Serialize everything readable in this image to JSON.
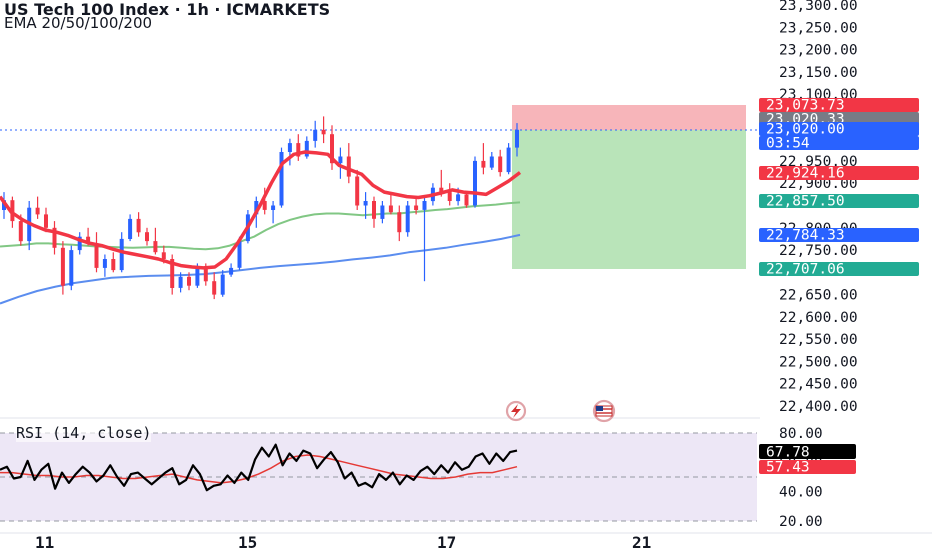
{
  "header": {
    "title": "US Tech 100 Index · 1h · ICMARKETS",
    "indicators": "EMA 20/50/100/200"
  },
  "rsi": {
    "legend": "RSI (14, close)",
    "axis_ticks": [
      "80.00",
      "60.00",
      "40.00",
      "20.00"
    ],
    "value_label": "67.78",
    "ma_label": "57.43",
    "value": 67.78,
    "ma_value": 57.43
  },
  "price_axis": {
    "ticks": [
      "23,300.00",
      "23,250.00",
      "23,200.00",
      "23,150.00",
      "23,100.00",
      "22,950.00",
      "22,900.00",
      "22,800.00",
      "22,750.00",
      "22,650.00",
      "22,600.00",
      "22,550.00",
      "22,500.00",
      "22,450.00",
      "22,400.00"
    ]
  },
  "price_tags": [
    {
      "label": "23,073.73",
      "color": "#f23645",
      "text": "#ffffff",
      "kind": "stop-loss"
    },
    {
      "label": "23,020.33",
      "color": "#787b86",
      "text": "#ffffff",
      "kind": "last-value"
    },
    {
      "label": "23,020.00",
      "color": "#2962ff",
      "text": "#ffffff",
      "kind": "current-price"
    },
    {
      "label": "03:54",
      "color": "#2962ff",
      "text": "#ffffff",
      "kind": "bar-countdown"
    },
    {
      "label": "22,924.16",
      "color": "#f23645",
      "text": "#ffffff",
      "kind": "ema-20"
    },
    {
      "label": "22,857.50",
      "color": "#22ab94",
      "text": "#ffffff",
      "kind": "ema-50"
    },
    {
      "label": "22,784.33",
      "color": "#2962ff",
      "text": "#ffffff",
      "kind": "ema-100"
    },
    {
      "label": "22,707.06",
      "color": "#22ab94",
      "text": "#ffffff",
      "kind": "take-profit"
    }
  ],
  "time_axis": {
    "labels": [
      "11",
      "15",
      "17",
      "21"
    ]
  },
  "position": {
    "type": "short",
    "entry": 23020.33,
    "stop": 23073.73,
    "target": 22707.06
  },
  "colors": {
    "up": "#2962ff",
    "down": "#f23645",
    "ema20": "#f23645",
    "ema50": "#81c784",
    "ema100": "#5b8def",
    "rsi_line": "#000000",
    "rsi_ma": "#e53935",
    "rsi_band": "#ede7f6",
    "stop_zone": "#f7b5ba",
    "target_zone": "#b9e4b9"
  },
  "icons": [
    "flash-icon",
    "calendar-flag-icon"
  ],
  "chart_data": [
    {
      "type": "candlestick",
      "title": "US Tech 100 Index · 1h · ICMARKETS",
      "y_range": [
        22375,
        23310
      ],
      "x_labels": [
        "11",
        "15",
        "17",
        "21"
      ],
      "series": [
        {
          "name": "EMA 20/50/100/200",
          "kind": "ema-20",
          "values": [
            22870,
            22835,
            22818,
            22805,
            22795,
            22790,
            22783,
            22773,
            22765,
            22760,
            22752,
            22745,
            22740,
            22735,
            22730,
            22722,
            22715,
            22712,
            22710,
            22712,
            22730,
            22765,
            22805,
            22850,
            22900,
            22945,
            22965,
            22970,
            22968,
            22965,
            22940,
            22930,
            22920,
            22895,
            22880,
            22875,
            22870,
            22868,
            22872,
            22878,
            22885,
            22880,
            22878,
            22875,
            22890,
            22905,
            22924
          ]
        },
        {
          "name": "",
          "kind": "ema-50",
          "values": [
            22758,
            22760,
            22762,
            22765,
            22765,
            22763,
            22762,
            22760,
            22758,
            22757,
            22756,
            22755,
            22756,
            22757,
            22757,
            22755,
            22753,
            22752,
            22754,
            22760,
            22770,
            22780,
            22795,
            22808,
            22818,
            22825,
            22830,
            22832,
            22832,
            22830,
            22828,
            22830,
            22832,
            22832,
            22835,
            22837,
            22840,
            22842,
            22845,
            22848,
            22850,
            22852,
            22855,
            22857
          ]
        },
        {
          "name": "",
          "kind": "ema-100",
          "values": [
            22630,
            22645,
            22658,
            22668,
            22676,
            22682,
            22688,
            22690,
            22692,
            22693,
            22694,
            22696,
            22700,
            22705,
            22710,
            22714,
            22717,
            22720,
            22724,
            22729,
            22733,
            22738,
            22745,
            22750,
            22755,
            22762,
            22768,
            22775,
            22784
          ]
        }
      ],
      "candles": [
        [
          22840,
          22880,
          22820,
          22862
        ],
        [
          22862,
          22870,
          22800,
          22815
        ],
        [
          22815,
          22830,
          22760,
          22770
        ],
        [
          22770,
          22860,
          22750,
          22845
        ],
        [
          22845,
          22870,
          22820,
          22830
        ],
        [
          22830,
          22845,
          22790,
          22800
        ],
        [
          22800,
          22815,
          22740,
          22755
        ],
        [
          22755,
          22770,
          22650,
          22670
        ],
        [
          22670,
          22760,
          22660,
          22750
        ],
        [
          22750,
          22790,
          22740,
          22780
        ],
        [
          22780,
          22800,
          22760,
          22765
        ],
        [
          22765,
          22790,
          22700,
          22710
        ],
        [
          22710,
          22740,
          22690,
          22730
        ],
        [
          22730,
          22745,
          22700,
          22705
        ],
        [
          22705,
          22790,
          22700,
          22775
        ],
        [
          22775,
          22830,
          22770,
          22820
        ],
        [
          22820,
          22835,
          22780,
          22790
        ],
        [
          22790,
          22800,
          22760,
          22770
        ],
        [
          22770,
          22800,
          22740,
          22745
        ],
        [
          22745,
          22760,
          22720,
          22730
        ],
        [
          22730,
          22740,
          22650,
          22665
        ],
        [
          22665,
          22700,
          22655,
          22690
        ],
        [
          22690,
          22700,
          22660,
          22670
        ],
        [
          22670,
          22720,
          22665,
          22710
        ],
        [
          22710,
          22720,
          22670,
          22680
        ],
        [
          22680,
          22700,
          22640,
          22650
        ],
        [
          22650,
          22705,
          22645,
          22695
        ],
        [
          22695,
          22720,
          22690,
          22710
        ],
        [
          22710,
          22780,
          22705,
          22770
        ],
        [
          22770,
          22840,
          22765,
          22830
        ],
        [
          22830,
          22870,
          22800,
          22860
        ],
        [
          22860,
          22890,
          22830,
          22840
        ],
        [
          22840,
          22860,
          22810,
          22850
        ],
        [
          22850,
          22980,
          22845,
          22970
        ],
        [
          22970,
          23000,
          22940,
          22990
        ],
        [
          22990,
          23010,
          22950,
          22960
        ],
        [
          22960,
          23005,
          22955,
          22995
        ],
        [
          22995,
          23040,
          22980,
          23020
        ],
        [
          23020,
          23050,
          22990,
          23010
        ],
        [
          23010,
          23030,
          22930,
          22945
        ],
        [
          22945,
          22980,
          22910,
          22960
        ],
        [
          22960,
          22990,
          22900,
          22915
        ],
        [
          22915,
          22930,
          22840,
          22850
        ],
        [
          22850,
          22880,
          22820,
          22860
        ],
        [
          22860,
          22870,
          22800,
          22820
        ],
        [
          22820,
          22860,
          22810,
          22850
        ],
        [
          22850,
          22880,
          22830,
          22835
        ],
        [
          22835,
          22850,
          22770,
          22790
        ],
        [
          22790,
          22860,
          22780,
          22850
        ],
        [
          22850,
          22870,
          22830,
          22840
        ],
        [
          22840,
          22870,
          22680,
          22860
        ],
        [
          22860,
          22900,
          22850,
          22890
        ],
        [
          22890,
          22930,
          22870,
          22880
        ],
        [
          22880,
          22900,
          22850,
          22860
        ],
        [
          22860,
          22890,
          22850,
          22875
        ],
        [
          22875,
          22880,
          22845,
          22850
        ],
        [
          22850,
          22960,
          22845,
          22950
        ],
        [
          22950,
          22990,
          22920,
          22935
        ],
        [
          22935,
          22970,
          22930,
          22960
        ],
        [
          22960,
          22975,
          22915,
          22925
        ],
        [
          22925,
          22990,
          22920,
          22980
        ],
        [
          22980,
          23035,
          22960,
          23020
        ]
      ]
    },
    {
      "type": "line",
      "title": "RSI (14, close)",
      "y_range": [
        15,
        85
      ],
      "y_ticks": [
        80,
        60,
        40,
        20
      ],
      "series": [
        {
          "name": "RSI (14, close)",
          "kind": "rsi",
          "values": [
            55,
            57,
            49,
            50,
            61,
            48,
            55,
            59,
            42,
            53,
            46,
            52,
            57,
            53,
            47,
            51,
            58,
            50,
            44,
            52,
            53,
            49,
            45,
            49,
            53,
            56,
            45,
            48,
            58,
            52,
            41,
            44,
            45,
            51,
            46,
            53,
            48,
            62,
            70,
            64,
            72,
            58,
            66,
            61,
            68,
            66,
            56,
            62,
            67,
            60,
            49,
            53,
            44,
            46,
            43,
            52,
            48,
            53,
            45,
            51,
            48,
            54,
            57,
            52,
            58,
            53,
            60,
            55,
            57,
            64,
            66,
            59,
            66,
            61,
            67,
            68
          ]
        },
        {
          "name": "",
          "kind": "rsi-ma",
          "values": [
            53,
            53,
            52,
            51,
            51,
            50,
            50,
            51,
            51,
            50,
            49,
            49,
            50,
            51,
            52,
            50,
            48,
            47,
            46,
            47,
            49,
            52,
            56,
            61,
            64,
            65,
            64,
            62,
            60,
            58,
            56,
            54,
            52,
            51,
            50,
            49,
            49,
            50,
            52,
            53,
            53,
            55,
            57
          ]
        }
      ]
    }
  ]
}
